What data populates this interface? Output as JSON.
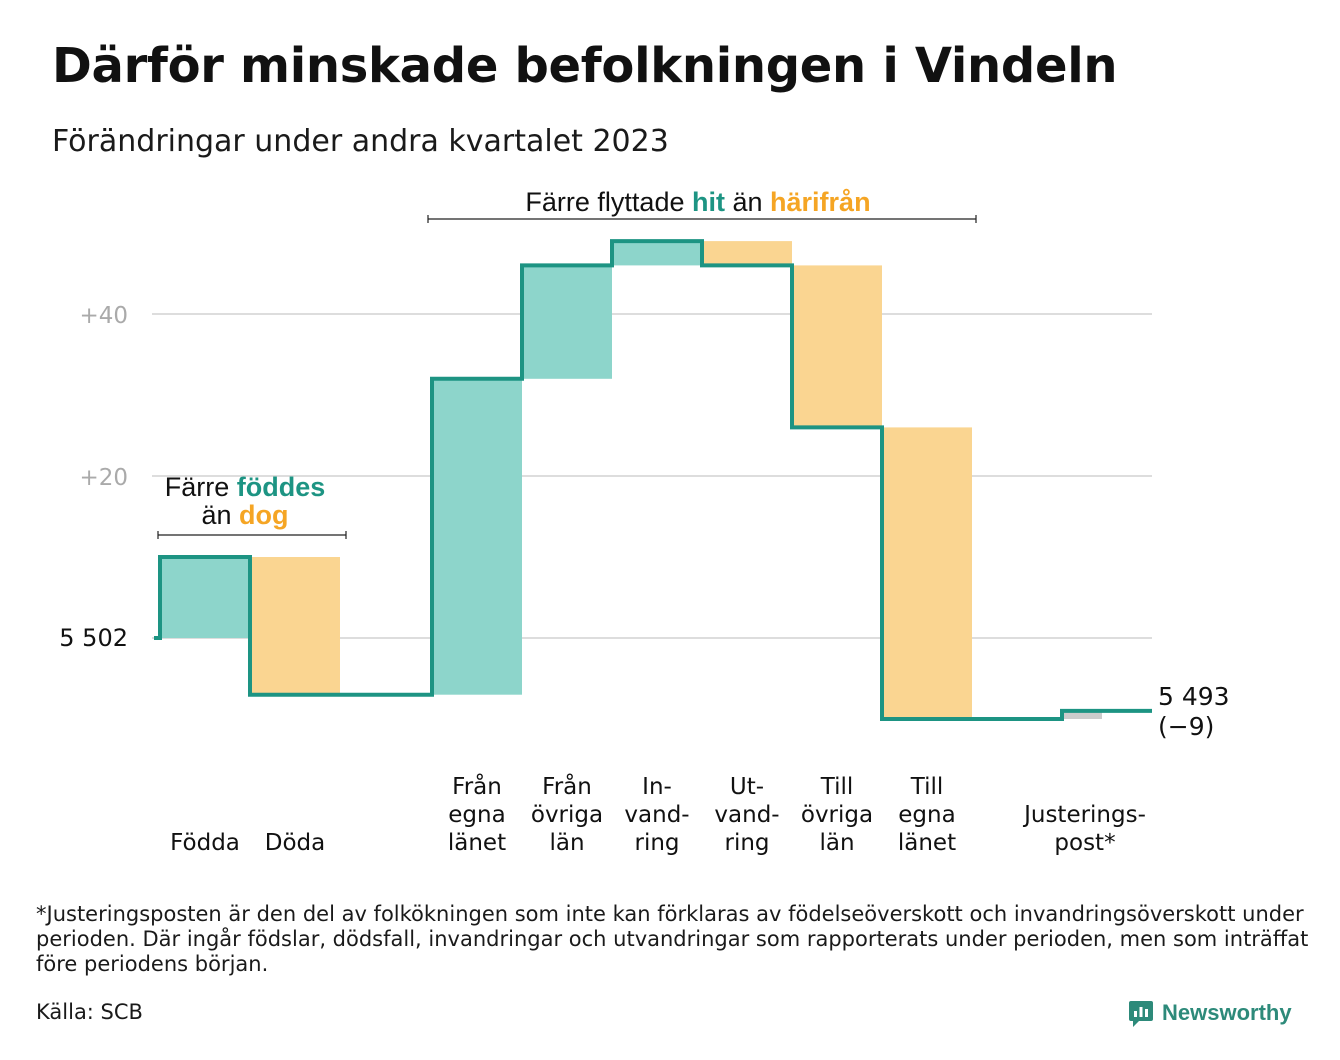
{
  "title": "Därför minskade befolkningen i Vindeln",
  "subtitle": "Förändringar under andra kvartalet 2023",
  "footnote": "*Justeringsposten är den del av folkökningen som inte kan förklaras av födelseöverskott och invandringsöverskott under perioden. Där ingår födslar, dödsfall, invandringar och utvandringar som rapporterats under perioden, men som inträffat före periodens början.",
  "source": "Källa: SCB",
  "brand": "Newsworthy",
  "colors": {
    "line": "#1d9483",
    "increase_fill": "#8dd5cb",
    "decrease_fill": "#fad591",
    "adjustment_fill": "#cccccc",
    "grid": "#dddddd",
    "tick_text": "#aaaaaa",
    "accent_hit": "#1d9483",
    "accent_harifran": "#f5a524"
  },
  "chart_data": {
    "type": "waterfall",
    "start_value": 5502,
    "start_label": "5  502",
    "end_value": 5493,
    "end_label": "5 493",
    "end_change_label": "(−9)",
    "y_ticks": [
      {
        "value": 20,
        "label": "+20"
      },
      {
        "value": 40,
        "label": "+40"
      }
    ],
    "y_range": [
      -12,
      50
    ],
    "steps": [
      {
        "key": "fodda",
        "label": [
          "Födda"
        ],
        "change": 10,
        "kind": "increase"
      },
      {
        "key": "doda",
        "label": [
          "Döda"
        ],
        "change": -17,
        "kind": "decrease"
      },
      {
        "key": "fran_egna",
        "label": [
          "Från",
          "egna",
          "länet"
        ],
        "change": 39,
        "kind": "increase"
      },
      {
        "key": "fran_ovriga",
        "label": [
          "Från",
          "övriga",
          "län"
        ],
        "change": 14,
        "kind": "increase"
      },
      {
        "key": "invandring",
        "label": [
          "In-",
          "vand-",
          "ring"
        ],
        "change": 3,
        "kind": "increase"
      },
      {
        "key": "utvandring",
        "label": [
          "Ut-",
          "vand-",
          "ring"
        ],
        "change": -3,
        "kind": "decrease"
      },
      {
        "key": "till_ovriga",
        "label": [
          "Till",
          "övriga",
          "län"
        ],
        "change": -20,
        "kind": "decrease"
      },
      {
        "key": "till_egna",
        "label": [
          "Till",
          "egna",
          "länet"
        ],
        "change": -36,
        "kind": "decrease"
      },
      {
        "key": "justering",
        "label": [
          "Justerings-",
          "post*"
        ],
        "change": 1,
        "kind": "adjustment"
      }
    ],
    "annotations": {
      "birth": {
        "line1": {
          "text": "Färre ",
          "bold": "föddes"
        },
        "line2": {
          "text": "än ",
          "bold": "dog"
        }
      },
      "migration": {
        "text1": "Färre flyttade ",
        "bold1": "hit",
        "text2": " än ",
        "bold2": "härifrån"
      }
    }
  }
}
